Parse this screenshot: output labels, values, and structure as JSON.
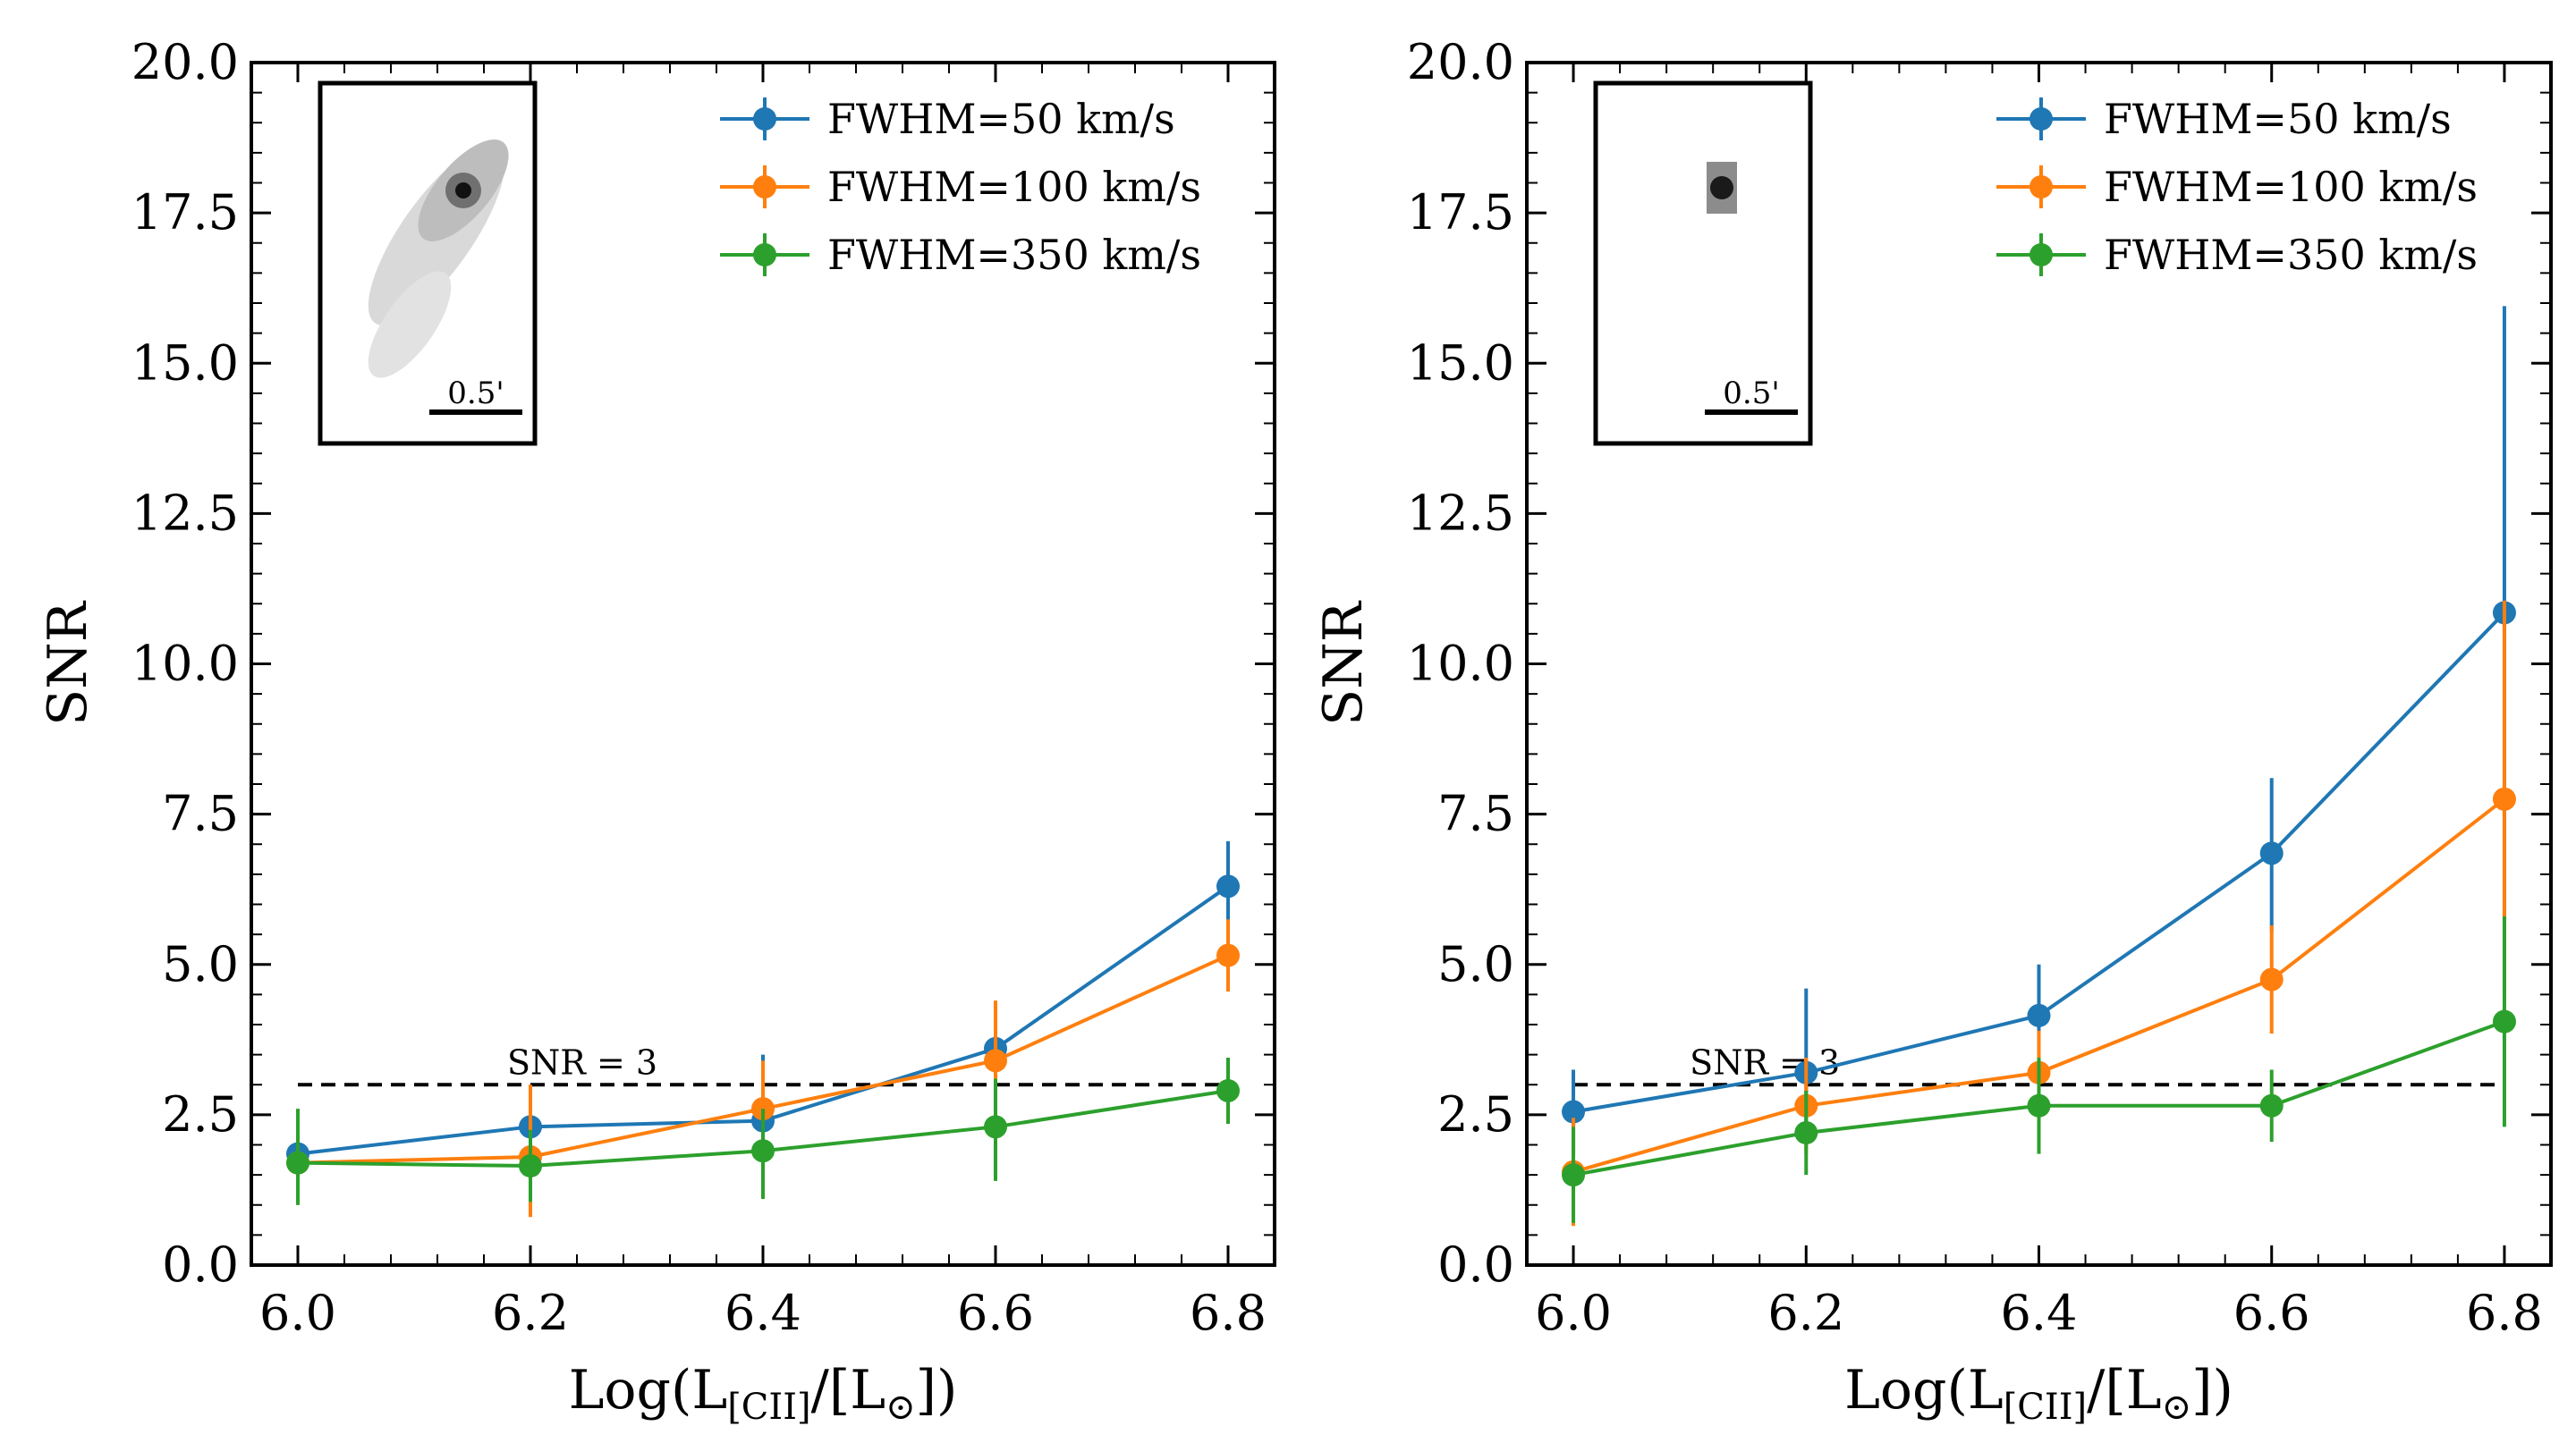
{
  "figure": {
    "panels": [
      "left",
      "right"
    ]
  },
  "chart_data": [
    {
      "type": "line",
      "panel": "left",
      "title": "",
      "xlabel": "Log(L",
      "xlabel_sub": "[CII]",
      "xlabel_tail": "/[L",
      "xlabel_end": "])",
      "xlabel_sym": "⊙",
      "ylabel": "SNR",
      "xlim": [
        5.96,
        6.84
      ],
      "ylim": [
        0.0,
        20.0
      ],
      "xticks": [
        6.0,
        6.2,
        6.4,
        6.6,
        6.8
      ],
      "xtick_labels": [
        "6.0",
        "6.2",
        "6.4",
        "6.6",
        "6.8"
      ],
      "yticks": [
        0.0,
        2.5,
        5.0,
        7.5,
        10.0,
        12.5,
        15.0,
        17.5,
        20.0
      ],
      "ytick_labels": [
        "0.0",
        "2.5",
        "5.0",
        "7.5",
        "10.0",
        "12.5",
        "15.0",
        "17.5",
        "20.0"
      ],
      "grid": false,
      "legend_position": "top-right",
      "x": [
        6.0,
        6.2,
        6.4,
        6.6,
        6.8
      ],
      "series": [
        {
          "name": "FWHM=50 km/s",
          "color": "#1f77b4",
          "values": [
            1.85,
            2.3,
            2.4,
            3.6,
            6.3
          ],
          "err_low": [
            0.6,
            0.7,
            0.6,
            0.7,
            0.75
          ],
          "err_high": [
            0.7,
            0.7,
            1.1,
            0.6,
            0.75
          ]
        },
        {
          "name": "FWHM=100 km/s",
          "color": "#ff7f0e",
          "values": [
            1.7,
            1.8,
            2.6,
            3.4,
            5.15
          ],
          "err_low": [
            0.7,
            1.0,
            0.9,
            0.8,
            0.6
          ],
          "err_high": [
            0.7,
            1.2,
            0.8,
            1.0,
            0.6
          ]
        },
        {
          "name": "FWHM=350 km/s",
          "color": "#2ca02c",
          "values": [
            1.7,
            1.65,
            1.9,
            2.3,
            2.9
          ],
          "err_low": [
            0.7,
            0.6,
            0.8,
            0.9,
            0.55
          ],
          "err_high": [
            0.9,
            0.6,
            0.7,
            0.8,
            0.55
          ]
        }
      ],
      "hline": {
        "y": 3.0,
        "label": "SNR = 3",
        "color": "#000000",
        "label_x": 6.18
      },
      "inset": {
        "scale_label": "0.5'",
        "morphology": "extended"
      }
    },
    {
      "type": "line",
      "panel": "right",
      "title": "",
      "xlabel": "Log(L",
      "xlabel_sub": "[CII]",
      "xlabel_tail": "/[L",
      "xlabel_end": "])",
      "xlabel_sym": "⊙",
      "ylabel": "SNR",
      "xlim": [
        5.96,
        6.84
      ],
      "ylim": [
        0.0,
        20.0
      ],
      "xticks": [
        6.0,
        6.2,
        6.4,
        6.6,
        6.8
      ],
      "xtick_labels": [
        "6.0",
        "6.2",
        "6.4",
        "6.6",
        "6.8"
      ],
      "yticks": [
        0.0,
        2.5,
        5.0,
        7.5,
        10.0,
        12.5,
        15.0,
        17.5,
        20.0
      ],
      "ytick_labels": [
        "0.0",
        "2.5",
        "5.0",
        "7.5",
        "10.0",
        "12.5",
        "15.0",
        "17.5",
        "20.0"
      ],
      "grid": false,
      "legend_position": "top-right",
      "x": [
        6.0,
        6.2,
        6.4,
        6.6,
        6.8
      ],
      "series": [
        {
          "name": "FWHM=50 km/s",
          "color": "#1f77b4",
          "values": [
            2.55,
            3.2,
            4.15,
            6.85,
            10.85
          ],
          "err_low": [
            0.7,
            1.0,
            1.0,
            1.3,
            5.1
          ],
          "err_high": [
            0.7,
            1.4,
            0.85,
            1.25,
            5.1
          ]
        },
        {
          "name": "FWHM=100 km/s",
          "color": "#ff7f0e",
          "values": [
            1.55,
            2.65,
            3.2,
            4.75,
            7.75
          ],
          "err_low": [
            0.9,
            0.8,
            0.7,
            0.9,
            3.3
          ],
          "err_high": [
            0.9,
            0.8,
            0.7,
            0.9,
            3.3
          ]
        },
        {
          "name": "FWHM=350 km/s",
          "color": "#2ca02c",
          "values": [
            1.5,
            2.2,
            2.65,
            2.65,
            4.05
          ],
          "err_low": [
            0.8,
            0.7,
            0.8,
            0.6,
            1.75
          ],
          "err_high": [
            0.8,
            0.7,
            0.8,
            0.6,
            1.75
          ]
        }
      ],
      "hline": {
        "y": 3.0,
        "label": "SNR = 3",
        "color": "#000000",
        "label_x": 6.1
      },
      "inset": {
        "scale_label": "0.5'",
        "morphology": "compact"
      }
    }
  ]
}
